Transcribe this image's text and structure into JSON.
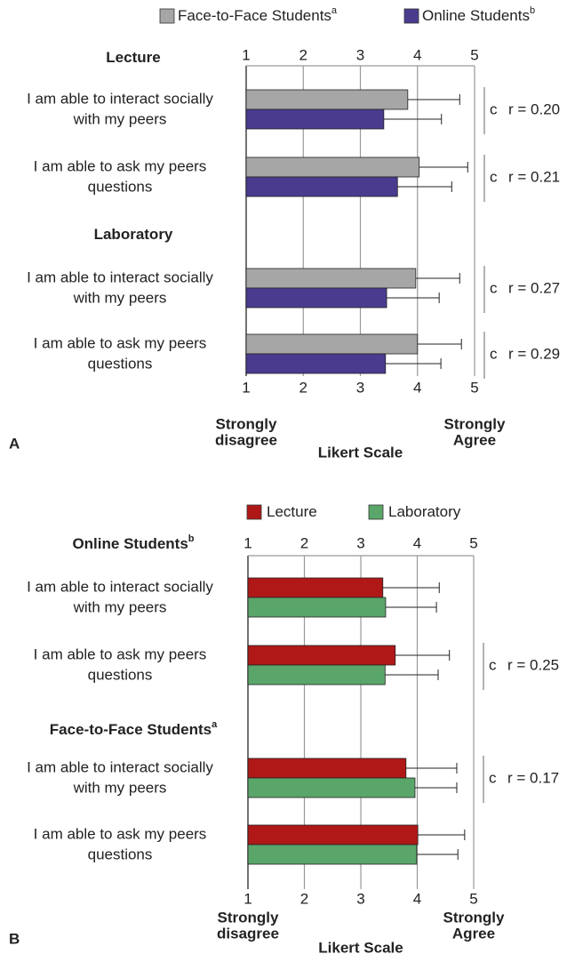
{
  "chart_data": [
    {
      "type": "bar",
      "orientation": "horizontal",
      "panel": "A",
      "series": [
        {
          "name": "Face-to-Face Students",
          "superscript": "a",
          "color": "#a6a6a6",
          "values": [
            [
              3.83,
              4.03
            ],
            [
              3.97,
              4.0
            ]
          ],
          "errors": [
            [
              0.91,
              0.85
            ],
            [
              0.77,
              0.77
            ]
          ]
        },
        {
          "name": "Online Students",
          "superscript": "b",
          "color": "#4b3b8f",
          "values": [
            [
              3.41,
              3.65
            ],
            [
              3.46,
              3.44
            ]
          ],
          "errors": [
            [
              1.01,
              0.95
            ],
            [
              0.92,
              0.97
            ]
          ]
        }
      ],
      "groups": [
        {
          "title": "Lecture",
          "categories": [
            [
              "I am able to interact socially",
              "with my peers"
            ],
            [
              "I am able to ask my peers",
              "questions"
            ]
          ],
          "significance": [
            "c",
            "c"
          ],
          "effect_sizes": [
            "r = 0.20",
            "r = 0.21"
          ]
        },
        {
          "title": "Laboratory",
          "categories": [
            [
              "I am able to interact socially",
              "with my peers"
            ],
            [
              "I am able to ask my peers",
              "questions"
            ]
          ],
          "significance": [
            "c",
            "c"
          ],
          "effect_sizes": [
            "r = 0.27",
            "r = 0.29"
          ]
        }
      ],
      "xlabel": "Likert Scale",
      "xlim": [
        1,
        5
      ],
      "xticks": [
        1,
        2,
        3,
        4,
        5
      ],
      "scale_anchors": [
        [
          "Strongly",
          "disagree"
        ],
        [
          "Strongly",
          "Agree"
        ]
      ]
    },
    {
      "type": "bar",
      "orientation": "horizontal",
      "panel": "B",
      "series": [
        {
          "name": "Lecture",
          "color": "#b01818",
          "values": [
            [
              3.39,
              3.61
            ],
            [
              3.8,
              4.01
            ]
          ],
          "errors": [
            [
              1.0,
              0.96
            ],
            [
              0.9,
              0.83
            ]
          ]
        },
        {
          "name": "Laboratory",
          "color": "#5aa66a",
          "values": [
            [
              3.44,
              3.43
            ],
            [
              3.96,
              3.99
            ]
          ],
          "errors": [
            [
              0.9,
              0.94
            ],
            [
              0.74,
              0.73
            ]
          ]
        }
      ],
      "groups": [
        {
          "title": "Online Students",
          "title_superscript": "b",
          "categories": [
            [
              "I am able to interact socially",
              "with my peers"
            ],
            [
              "I am able to ask my peers",
              "questions"
            ]
          ],
          "significance": [
            null,
            "c"
          ],
          "effect_sizes": [
            null,
            "r = 0.25"
          ]
        },
        {
          "title": "Face-to-Face Students",
          "title_superscript": "a",
          "categories": [
            [
              "I am able to interact socially",
              "with my peers"
            ],
            [
              "I am able to ask my peers",
              "questions"
            ]
          ],
          "significance": [
            "c",
            null
          ],
          "effect_sizes": [
            "r = 0.17",
            null
          ]
        }
      ],
      "xlabel": "Likert Scale",
      "xlim": [
        1,
        5
      ],
      "xticks": [
        1,
        2,
        3,
        4,
        5
      ],
      "scale_anchors": [
        [
          "Strongly",
          "disagree"
        ],
        [
          "Strongly",
          "Agree"
        ]
      ]
    }
  ]
}
